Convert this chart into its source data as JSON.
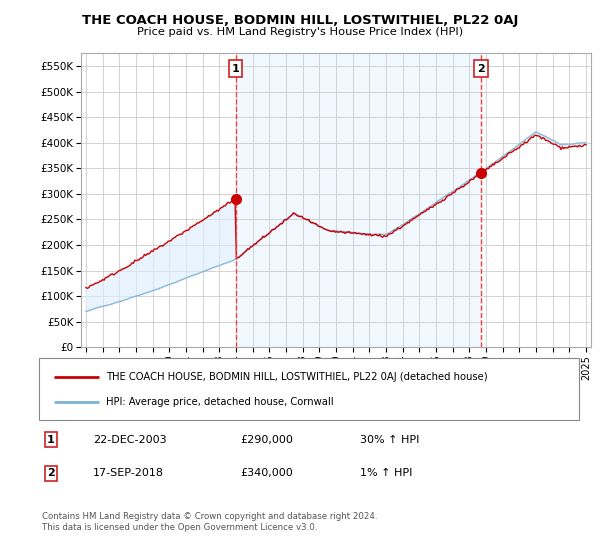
{
  "title": "THE COACH HOUSE, BODMIN HILL, LOSTWITHIEL, PL22 0AJ",
  "subtitle": "Price paid vs. HM Land Registry's House Price Index (HPI)",
  "ylabel_ticks": [
    "£0",
    "£50K",
    "£100K",
    "£150K",
    "£200K",
    "£250K",
    "£300K",
    "£350K",
    "£400K",
    "£450K",
    "£500K",
    "£550K"
  ],
  "ytick_vals": [
    0,
    50000,
    100000,
    150000,
    200000,
    250000,
    300000,
    350000,
    400000,
    450000,
    500000,
    550000
  ],
  "ylim": [
    0,
    575000
  ],
  "xlim_start": 1994.7,
  "xlim_end": 2025.3,
  "xtick_years": [
    1995,
    1996,
    1997,
    1998,
    1999,
    2000,
    2001,
    2002,
    2003,
    2004,
    2005,
    2006,
    2007,
    2008,
    2009,
    2010,
    2011,
    2012,
    2013,
    2014,
    2015,
    2016,
    2017,
    2018,
    2019,
    2020,
    2021,
    2022,
    2023,
    2024,
    2025
  ],
  "sale1_x": 2003.97,
  "sale1_y": 290000,
  "sale2_x": 2018.72,
  "sale2_y": 340000,
  "red_line_color": "#cc0000",
  "blue_line_color": "#7fb3d3",
  "fill_color": "#ddeeff",
  "vline_color": "#ee4444",
  "grid_color": "#cccccc",
  "background_color": "#ffffff",
  "legend_line1": "THE COACH HOUSE, BODMIN HILL, LOSTWITHIEL, PL22 0AJ (detached house)",
  "legend_line2": "HPI: Average price, detached house, Cornwall",
  "annotation1_date": "22-DEC-2003",
  "annotation1_price": "£290,000",
  "annotation1_hpi": "30% ↑ HPI",
  "annotation2_date": "17-SEP-2018",
  "annotation2_price": "£340,000",
  "annotation2_hpi": "1% ↑ HPI",
  "footer": "Contains HM Land Registry data © Crown copyright and database right 2024.\nThis data is licensed under the Open Government Licence v3.0."
}
